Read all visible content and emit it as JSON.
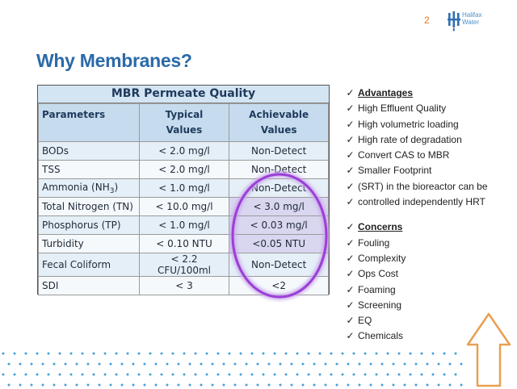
{
  "page_number": "2",
  "logo": {
    "line1": "Halifax",
    "line2": "Water"
  },
  "title": "Why Membranes?",
  "table": {
    "title": "MBR Permeate Quality",
    "headers": {
      "parameters": "Parameters",
      "typical_1": "Typical",
      "typical_2": "Values",
      "achievable_1": "Achievable",
      "achievable_2": "Values"
    },
    "rows": [
      {
        "param": "BODs",
        "typical": "< 2.0 mg/l",
        "achievable": "Non-Detect"
      },
      {
        "param": "TSS",
        "typical": "< 2.0 mg/l",
        "achievable": "Non-Detect"
      },
      {
        "param": "Ammonia (NH",
        "param_sub": "3",
        "param_end": ")",
        "typical": "< 1.0 mg/l",
        "achievable": "Non-Detect"
      },
      {
        "param": "Total Nitrogen (TN)",
        "typical": "< 10.0 mg/l",
        "achievable": "< 3.0 mg/l"
      },
      {
        "param": "Phosphorus (TP)",
        "typical": "< 1.0 mg/l",
        "achievable": "< 0.03 mg/l"
      },
      {
        "param": "Turbidity",
        "typical": "< 0.10 NTU",
        "achievable": "<0.05 NTU"
      },
      {
        "param": "Fecal Coliform",
        "typical": "< 2.2 CFU/100ml",
        "achievable": "Non-Detect"
      },
      {
        "param": "SDI",
        "typical": "< 3",
        "achievable": "<2"
      }
    ]
  },
  "bullets": {
    "check_mark": "✓",
    "advantages_heading": "Advantages",
    "advantages": [
      "High Effluent Quality",
      "High volumetric loading",
      "High rate of degradation",
      "Convert CAS to MBR",
      "Smaller Footprint",
      "(SRT) in the bioreactor can be",
      "controlled independently HRT"
    ],
    "concerns_heading": "Concerns",
    "concerns": [
      "Fouling",
      "Complexity",
      "Ops Cost",
      "Foaming",
      "Screening",
      "EQ",
      "Chemicals"
    ]
  },
  "colors": {
    "title": "#2a6aa8",
    "page_number": "#e87722",
    "highlight_ring": "#9b3fd6",
    "arrow": "#e8a050",
    "dots": "#4aa0d8"
  },
  "icons": {
    "logo": "halifax-water-logo-icon",
    "arrow": "up-arrow-outline-icon",
    "check": "check-icon"
  }
}
